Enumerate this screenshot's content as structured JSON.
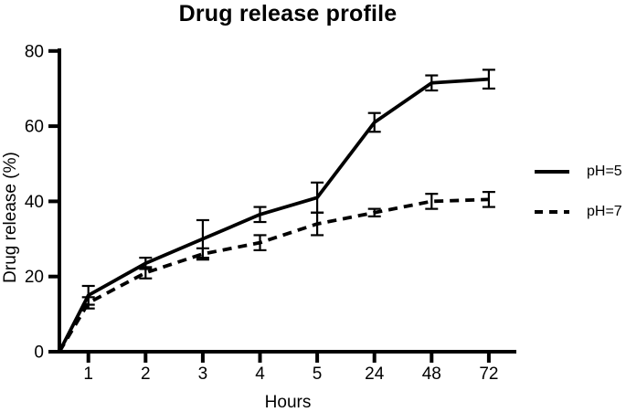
{
  "figure": {
    "title": "Drug release profile",
    "xlabel": "Hours",
    "ylabel": "Drug release (%)"
  },
  "chart_data": {
    "type": "line",
    "title": "Drug release profile",
    "xlabel": "Hours",
    "ylabel": "Drug release (%)",
    "categories": [
      "1",
      "2",
      "3",
      "4",
      "5",
      "24",
      "48",
      "72"
    ],
    "x_spacing": "categorical-equal",
    "origin_point": {
      "x": 0,
      "y": 0,
      "note": "both series rise from 0% at the y-axis"
    },
    "ylim": [
      0,
      80
    ],
    "yticks": [
      0,
      20,
      40,
      60,
      80
    ],
    "grid": false,
    "error_bars": true,
    "legend_position": "right-outside-middle",
    "line_color": "#000000",
    "series": [
      {
        "name": "pH=5",
        "line_style": "solid",
        "values": [
          15,
          23.5,
          30,
          36.5,
          41,
          61,
          71.5,
          72.5
        ],
        "errors": [
          2.5,
          1.5,
          5,
          2,
          4,
          2.5,
          2,
          2.5
        ]
      },
      {
        "name": "pH=7",
        "line_style": "dashed",
        "values": [
          13,
          21,
          26,
          29,
          34,
          37,
          40,
          40.5
        ],
        "errors": [
          1.5,
          1.5,
          1.5,
          2,
          3,
          1,
          2,
          2
        ]
      }
    ]
  },
  "legend": {
    "items": [
      {
        "label": "pH=5",
        "style": "solid"
      },
      {
        "label": "pH=7",
        "style": "dashed"
      }
    ]
  },
  "colors": {
    "foreground": "#000000",
    "background": "#ffffff"
  }
}
